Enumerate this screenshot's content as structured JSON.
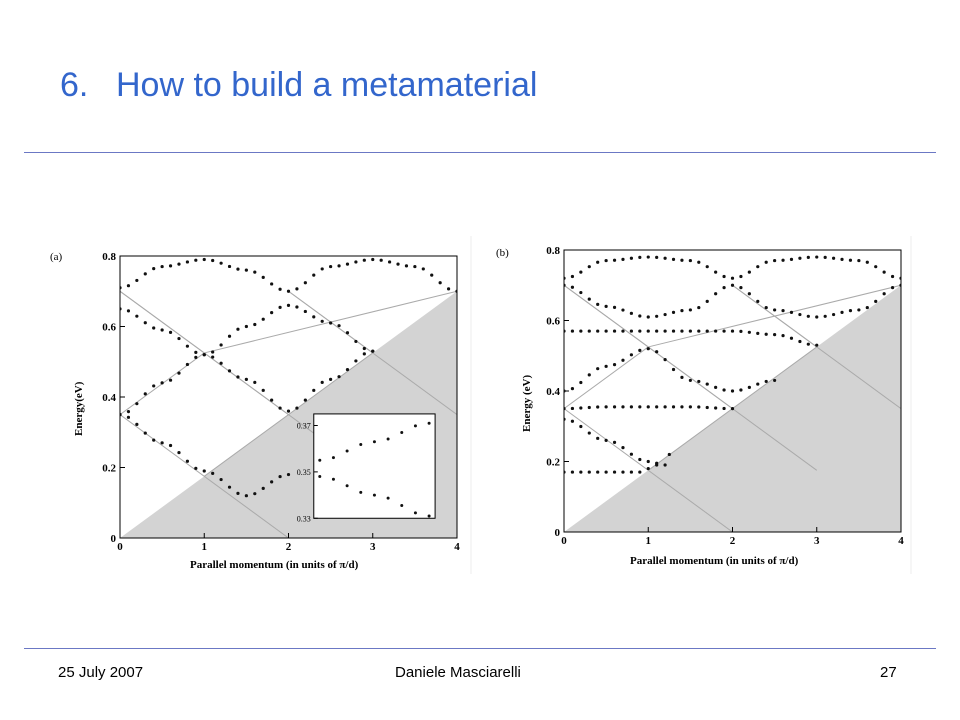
{
  "slide": {
    "title_number": "6.",
    "title_text": "How to build a metamaterial"
  },
  "footer": {
    "date": "25 July 2007",
    "author": "Daniele Masciarelli",
    "page": "27"
  },
  "chart_data": [
    {
      "type": "scatter",
      "panel_label": "(a)",
      "xlabel": "Parallel momentum (in units of π/d)",
      "ylabel": "Energy(eV)",
      "xlim": [
        0,
        4
      ],
      "ylim": [
        0,
        0.8
      ],
      "x_ticks": [
        "0",
        "1",
        "2",
        "3",
        "4"
      ],
      "y_ticks": [
        "0",
        "0.2",
        "0.4",
        "0.6",
        "0.8"
      ],
      "shaded_region": "below light line E = 0.175·k",
      "series": [
        {
          "x": [
            0,
            0.5,
            1,
            1.5,
            2,
            2.5,
            3
          ],
          "y": [
            0.35,
            0.44,
            0.52,
            0.6,
            0.66,
            0.61,
            0.53
          ]
        },
        {
          "x": [
            0,
            0.5,
            1,
            1.5,
            2
          ],
          "y": [
            0.35,
            0.27,
            0.19,
            0.12,
            0.18
          ]
        },
        {
          "x": [
            0,
            0.5,
            1,
            1.5,
            2,
            2.5,
            3
          ],
          "y": [
            0.65,
            0.59,
            0.52,
            0.45,
            0.36,
            0.45,
            0.53
          ]
        },
        {
          "x": [
            0,
            0.5,
            1,
            1.5,
            2,
            2.5,
            3,
            3.5,
            4
          ],
          "y": [
            0.71,
            0.77,
            0.79,
            0.76,
            0.7,
            0.77,
            0.79,
            0.77,
            0.7
          ]
        }
      ],
      "inset": {
        "y_ticks": [
          "0.33",
          "0.35",
          "0.37"
        ],
        "series": [
          {
            "x": [
              0,
              0.5,
              1
            ],
            "y": [
              0.355,
              0.363,
              0.371
            ]
          },
          {
            "x": [
              0,
              0.5,
              1
            ],
            "y": [
              0.348,
              0.34,
              0.331
            ]
          }
        ]
      }
    },
    {
      "type": "scatter",
      "panel_label": "(b)",
      "xlabel": "Parallel momentum (in units of π/d)",
      "ylabel": "Energy (eV)",
      "xlim": [
        0,
        4
      ],
      "ylim": [
        0,
        0.8
      ],
      "x_ticks": [
        "0",
        "1",
        "2",
        "3",
        "4"
      ],
      "y_ticks": [
        "0",
        "0.2",
        "0.4",
        "0.6",
        "0.8"
      ],
      "shaded_region": "below light line E = 0.175·k",
      "series": [
        {
          "x": [
            0,
            0.5,
            0.9,
            1.1,
            1.25
          ],
          "y": [
            0.17,
            0.17,
            0.17,
            0.19,
            0.22
          ]
        },
        {
          "x": [
            0,
            0.5,
            1,
            1.5,
            2
          ],
          "y": [
            0.35,
            0.355,
            0.355,
            0.355,
            0.35
          ]
        },
        {
          "x": [
            0,
            0.5,
            1,
            1.5,
            2,
            2.5
          ],
          "y": [
            0.4,
            0.47,
            0.52,
            0.43,
            0.4,
            0.43
          ]
        },
        {
          "x": [
            0,
            0.5,
            1,
            1.5,
            2,
            2.5,
            3
          ],
          "y": [
            0.57,
            0.57,
            0.57,
            0.57,
            0.57,
            0.56,
            0.53
          ]
        },
        {
          "x": [
            0,
            0.5,
            1,
            1.5,
            2,
            2.5,
            3,
            3.5,
            4
          ],
          "y": [
            0.7,
            0.64,
            0.61,
            0.63,
            0.7,
            0.63,
            0.61,
            0.63,
            0.7
          ]
        },
        {
          "x": [
            0,
            0.5,
            1,
            1.5,
            2,
            2.5,
            3,
            3.5,
            4
          ],
          "y": [
            0.72,
            0.77,
            0.78,
            0.77,
            0.72,
            0.77,
            0.78,
            0.77,
            0.72
          ]
        },
        {
          "x": [
            0,
            0.5,
            1,
            1.2
          ],
          "y": [
            0.32,
            0.26,
            0.2,
            0.19
          ]
        }
      ]
    }
  ]
}
